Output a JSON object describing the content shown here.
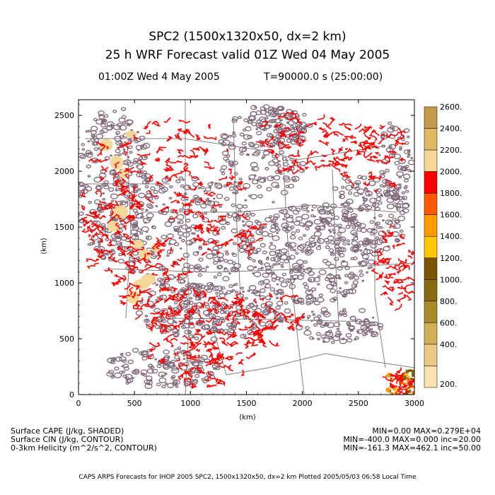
{
  "header": {
    "title": "SPC2 (1500x1320x50, dx=2 km)",
    "forecast": "25 h WRF Forecast valid 01Z Wed 04 May 2005",
    "time_label": "01:00Z Wed  4 May 2005",
    "seconds_label": "T=90000.0 s (25:00:00)"
  },
  "footer": {
    "var1": "Surface CAPE (J/kg, SHADED)",
    "var2": "Surface CIN (J/kg, CONTOUR)",
    "var3": "0-3km Helicity (m^2/s^2, CONTOUR)",
    "stat1": "MIN=0.00 MAX=0.279E+04",
    "stat2": "MIN=-400.0 MAX=0.000 inc=20.00",
    "stat3": "MIN=-161.3 MAX=462.1 inc=50.00",
    "credits": "CAPS ARPS Forecasts for IHOP 2005   SPC2, 1500x1320x50, dx=2 km   Plotted 2005/05/03 06:58 Local Time"
  },
  "chart_data": {
    "type": "heatmap",
    "xlabel": "(km)",
    "ylabel": "(km)",
    "xlim": [
      0,
      3000
    ],
    "ylim": [
      0,
      2640
    ],
    "xticks": [
      0,
      500,
      1000,
      1500,
      2000,
      2500,
      3000
    ],
    "yticks": [
      0,
      500,
      1000,
      1500,
      2000,
      2500
    ],
    "colorbar": {
      "labels": [
        "2600.",
        "2400.",
        "2200.",
        "2000.",
        "1800.",
        "1600.",
        "1400.",
        "1200.",
        "1000.",
        "800.",
        "600.",
        "400.",
        "200."
      ],
      "colors": [
        "#c49a4c",
        "#ddb860",
        "#f5d898",
        "#ff0000",
        "#ff5a00",
        "#ff9a00",
        "#ffc800",
        "#7a5200",
        "#8a6a10",
        "#a88a28",
        "#d2b058",
        "#ecc888",
        "#fce0b0"
      ]
    },
    "colors": {
      "cin_contour": "#806878",
      "helicity_contour": "#ff0000",
      "map_lines": "#808080",
      "cape_fill": "#f5d898"
    },
    "shaded": "Surface CAPE (J/kg)",
    "contours": [
      "Surface CIN (J/kg)",
      "0-3km Helicity (m^2/s^2)"
    ]
  }
}
